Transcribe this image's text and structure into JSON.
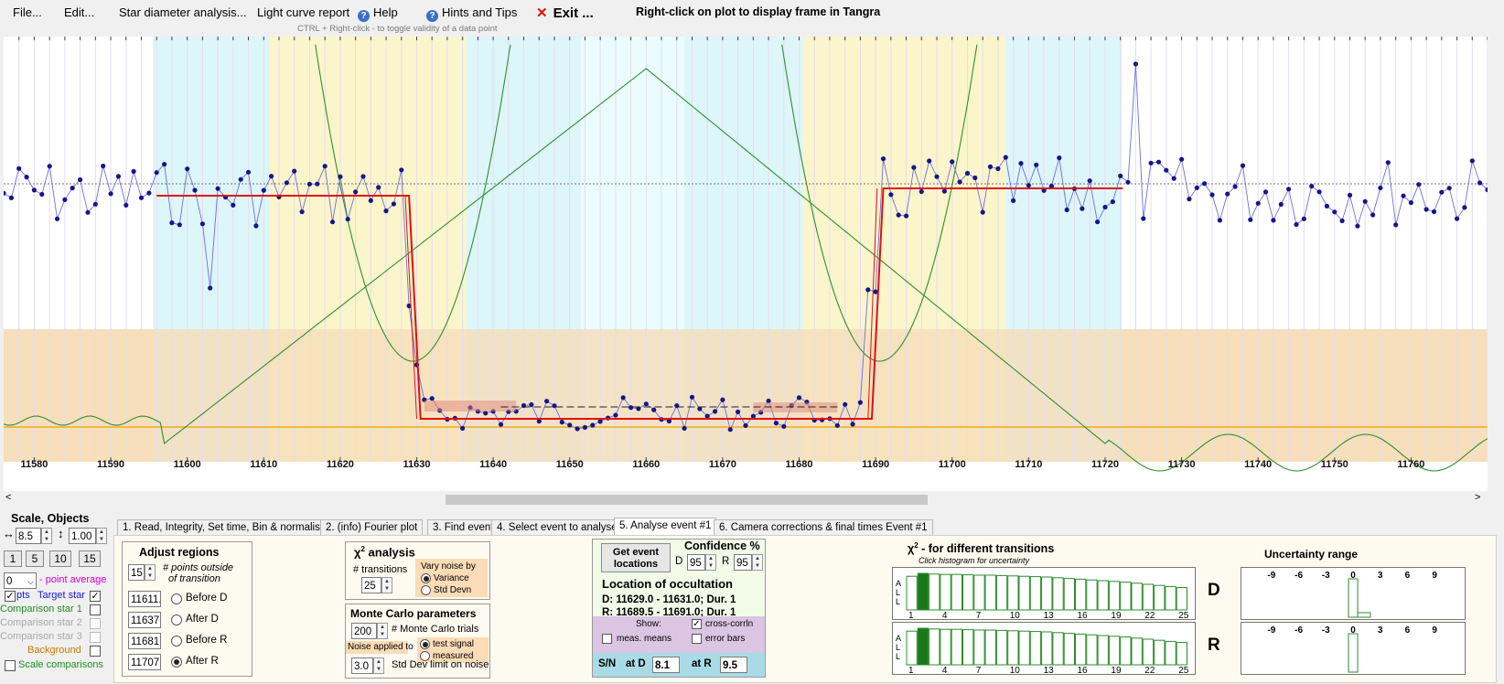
{
  "menu": {
    "file": "File...",
    "edit": "Edit...",
    "star_diameter": "Star diameter analysis...",
    "light_curve_report": "Light curve report",
    "help": "Help",
    "hints": "Hints and Tips",
    "exit": "Exit ...",
    "hint_right_click": "Right-click on plot to display frame in Tangra",
    "hint_ctrl": "CTRL + Right-click  -  to toggle validity of a data point"
  },
  "plot": {
    "x_ticks": [
      "11580",
      "11590",
      "11600",
      "11610",
      "11620",
      "11630",
      "11640",
      "11650",
      "11660",
      "11670",
      "11680",
      "11690",
      "11700",
      "11710",
      "11720",
      "11730",
      "11740",
      "11750",
      "11760"
    ],
    "x_range": [
      11576,
      11770
    ]
  },
  "left_panel": {
    "title": "Scale,  Objects",
    "scale_x": "8.5",
    "scale_y": "1.00",
    "avg_buttons": [
      "1",
      "5",
      "10",
      "15"
    ],
    "avg_value": "0",
    "point_average_label": "- point average",
    "pts_label": "pts",
    "target_star": "Target star",
    "comparison1": "Comparison star 1",
    "comparison2": "Comparison star 2",
    "comparison3": "Comparison star 3",
    "background": "Background",
    "scale_comparisons": "Scale comparisons"
  },
  "tabs": [
    "1.  Read, Integrity, Set time, Bin & normalise",
    "2. (info)  Fourier plot",
    "3. Find events",
    "4. Select event to analyse",
    "5. Analyse event #1",
    "6. Camera corrections & final times Event #1"
  ],
  "adjust": {
    "title": "Adjust regions",
    "points_value": "15",
    "points_label_1": "# points outside",
    "points_label_2": "of transition",
    "before_d_value": "11611.0",
    "after_d_value": "11637.0",
    "before_r_value": "11681.0",
    "after_r_value": "11707.0",
    "before_d": "Before D",
    "after_d": "After D",
    "before_r": "Before R",
    "after_r": "After R"
  },
  "chi2": {
    "title_chi": "χ",
    "title_sup": "2",
    "title_rest": " analysis",
    "transitions_label": "# transitions",
    "transitions_value": "25",
    "vary_noise": "Vary noise by",
    "variance": "Variance",
    "std_devn": "Std Devn"
  },
  "monte": {
    "title": "Monte Carlo parameters",
    "trials_value": "200",
    "trials_label": "# Monte Carlo trials",
    "noise_applied": "Noise applied to",
    "test_signal": "test signal",
    "measured": "measured",
    "limit_value": "3.0",
    "limit_label": "Std Dev limit on noise"
  },
  "event": {
    "get_event_1": "Get event",
    "get_event_2": "locations",
    "confidence": "Confidence %",
    "d_label": "D",
    "d_value": "95",
    "r_label": "R",
    "r_value": "95",
    "location_title": "Location of occultation",
    "d_line": "D: 11629.0 - 11631.0; Dur. 1",
    "r_line": "R: 11689.5 - 11691.0; Dur. 1",
    "show": "Show:",
    "cross_corrln": "cross-corrln",
    "meas_means": "meas. means",
    "error_bars": "error bars",
    "sn": "S/N",
    "at_d": "at D",
    "sn_d": "8.1",
    "at_r": "at R",
    "sn_r": "9.5"
  },
  "chi_hist": {
    "title_chi": "χ",
    "title_sup": "2",
    "title_rest": " - for different transitions",
    "subtitle": "Click histogram for uncertainty",
    "all_label": "A\nL\nL",
    "ticks": [
      "1",
      "4",
      "7",
      "10",
      "13",
      "16",
      "19",
      "22",
      "25"
    ],
    "d_heights": [
      0.92,
      1.0,
      0.98,
      0.97,
      0.97,
      0.96,
      0.95,
      0.95,
      0.94,
      0.93,
      0.92,
      0.91,
      0.9,
      0.88,
      0.86,
      0.84,
      0.82,
      0.8,
      0.78,
      0.76,
      0.73,
      0.7,
      0.67,
      0.64,
      0.61
    ],
    "r_heights": [
      0.92,
      1.0,
      0.98,
      0.97,
      0.97,
      0.96,
      0.95,
      0.95,
      0.94,
      0.93,
      0.92,
      0.91,
      0.9,
      0.88,
      0.86,
      0.84,
      0.82,
      0.8,
      0.78,
      0.76,
      0.73,
      0.7,
      0.67,
      0.64,
      0.61
    ],
    "d_letter": "D",
    "r_letter": "R"
  },
  "uncertainty": {
    "title": "Uncertainty range",
    "ticks": [
      "-9",
      "-6",
      "-3",
      "0",
      "3",
      "6",
      "9"
    ]
  }
}
